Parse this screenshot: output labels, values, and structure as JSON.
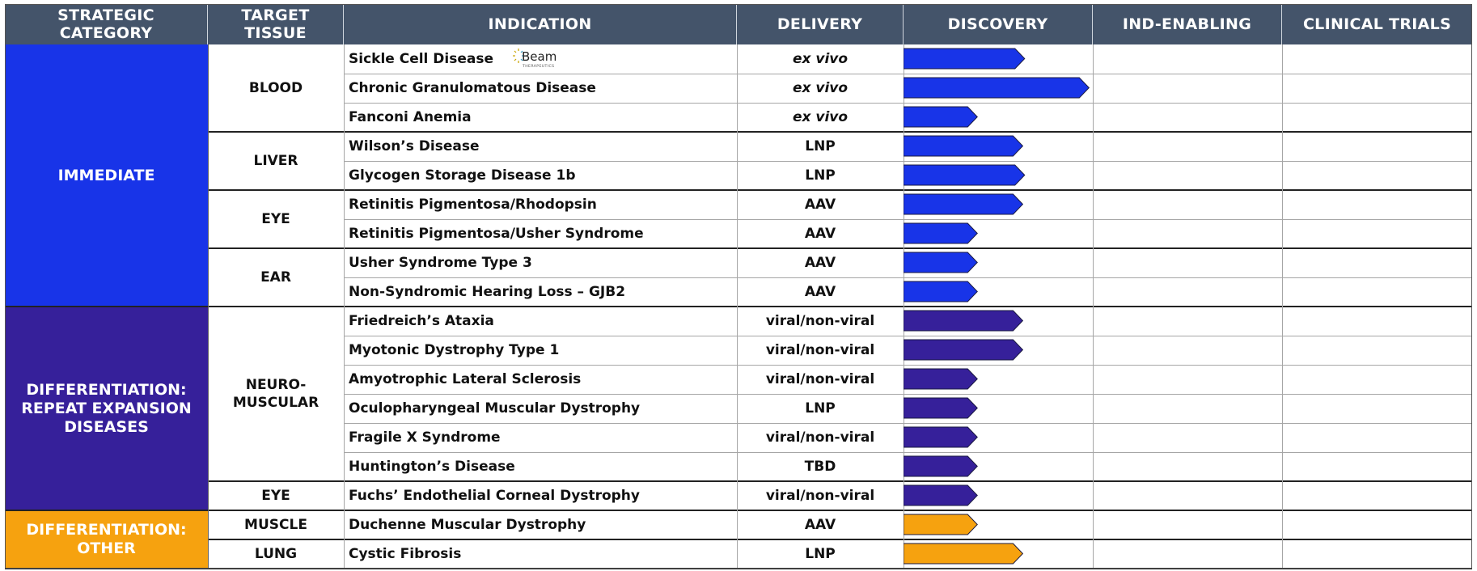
{
  "headers": {
    "category": "STRATEGIC CATEGORY",
    "tissue": "TARGET TISSUE",
    "indication": "INDICATION",
    "delivery": "DELIVERY",
    "discovery": "DISCOVERY",
    "ind_enabling": "IND-ENABLING",
    "clinical": "CLINICAL TRIALS"
  },
  "colors": {
    "header_bg": "#44546a",
    "immediate": "#1834e8",
    "repeat": "#36209a",
    "other": "#f6a20f"
  },
  "logo": {
    "name": "Beam",
    "sub": "THERAPEUTICS"
  },
  "categories": [
    {
      "label": "IMMEDIATE",
      "first": 0,
      "count": 9,
      "color": "#1834e8"
    },
    {
      "label": "DIFFERENTIATION: REPEAT EXPANSION DISEASES",
      "first": 9,
      "count": 7,
      "color": "#36209a"
    },
    {
      "label": "DIFFERENTIATION: OTHER",
      "first": 16,
      "count": 2,
      "color": "#f6a20f"
    }
  ],
  "tissues": [
    {
      "label": "BLOOD",
      "first": 0,
      "count": 3
    },
    {
      "label": "LIVER",
      "first": 3,
      "count": 2
    },
    {
      "label": "EYE",
      "first": 5,
      "count": 2
    },
    {
      "label": "EAR",
      "first": 7,
      "count": 2
    },
    {
      "label": "NEURO-MUSCULAR",
      "first": 9,
      "count": 6
    },
    {
      "label": "EYE",
      "first": 15,
      "count": 1
    },
    {
      "label": "MUSCLE",
      "first": 16,
      "count": 1
    },
    {
      "label": "LUNG",
      "first": 17,
      "count": 1
    }
  ],
  "chart_data": {
    "type": "bar",
    "orientation": "horizontal",
    "stages": [
      "DISCOVERY",
      "IND-ENABLING",
      "CLINICAL TRIALS"
    ],
    "unit": "fraction of DISCOVERY column",
    "xlim": [
      0,
      3
    ],
    "rows": [
      {
        "indication": "Sickle Cell Disease",
        "delivery": "ex vivo",
        "italic": true,
        "progress": 0.64,
        "color": "#1834e8"
      },
      {
        "indication": "Chronic Granulomatous Disease",
        "delivery": "ex vivo",
        "italic": true,
        "progress": 0.98,
        "color": "#1834e8"
      },
      {
        "indication": "Fanconi Anemia",
        "delivery": "ex vivo",
        "italic": true,
        "progress": 0.39,
        "color": "#1834e8"
      },
      {
        "indication": "Wilson’s Disease",
        "delivery": "LNP",
        "italic": false,
        "progress": 0.63,
        "color": "#1834e8"
      },
      {
        "indication": "Glycogen Storage Disease 1b",
        "delivery": "LNP",
        "italic": false,
        "progress": 0.64,
        "color": "#1834e8"
      },
      {
        "indication": "Retinitis Pigmentosa/Rhodopsin",
        "delivery": "AAV",
        "italic": false,
        "progress": 0.63,
        "color": "#1834e8"
      },
      {
        "indication": "Retinitis Pigmentosa/Usher Syndrome",
        "delivery": "AAV",
        "italic": false,
        "progress": 0.39,
        "color": "#1834e8"
      },
      {
        "indication": "Usher Syndrome Type 3",
        "delivery": "AAV",
        "italic": false,
        "progress": 0.39,
        "color": "#1834e8"
      },
      {
        "indication": "Non-Syndromic Hearing Loss – GJB2",
        "delivery": "AAV",
        "italic": false,
        "progress": 0.39,
        "color": "#1834e8"
      },
      {
        "indication": "Friedreich’s Ataxia",
        "delivery": "viral/non-viral",
        "italic": false,
        "progress": 0.63,
        "color": "#36209a"
      },
      {
        "indication": "Myotonic Dystrophy Type 1",
        "delivery": "viral/non-viral",
        "italic": false,
        "progress": 0.63,
        "color": "#36209a"
      },
      {
        "indication": "Amyotrophic Lateral Sclerosis",
        "delivery": "viral/non-viral",
        "italic": false,
        "progress": 0.39,
        "color": "#36209a"
      },
      {
        "indication": "Oculopharyngeal Muscular Dystrophy",
        "delivery": "LNP",
        "italic": false,
        "progress": 0.39,
        "color": "#36209a"
      },
      {
        "indication": "Fragile X Syndrome",
        "delivery": "viral/non-viral",
        "italic": false,
        "progress": 0.39,
        "color": "#36209a"
      },
      {
        "indication": "Huntington’s Disease",
        "delivery": "TBD",
        "italic": false,
        "progress": 0.39,
        "color": "#36209a"
      },
      {
        "indication": "Fuchs’ Endothelial Corneal Dystrophy",
        "delivery": "viral/non-viral",
        "italic": false,
        "progress": 0.39,
        "color": "#36209a"
      },
      {
        "indication": "Duchenne Muscular Dystrophy",
        "delivery": "AAV",
        "italic": false,
        "progress": 0.39,
        "color": "#f6a20f"
      },
      {
        "indication": "Cystic Fibrosis",
        "delivery": "LNP",
        "italic": false,
        "progress": 0.63,
        "color": "#f6a20f"
      }
    ]
  }
}
